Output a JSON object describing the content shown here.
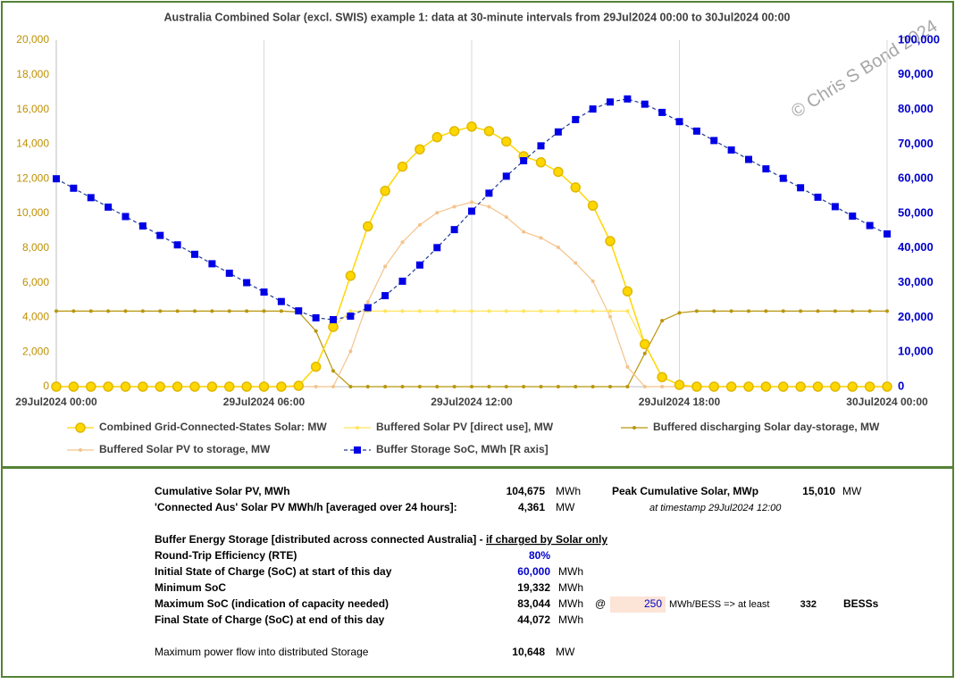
{
  "chart_data": {
    "type": "line",
    "title": "Australia Combined Solar (excl. SWIS) example 1: data at 30-minute intervals from 29Jul2024 00:00 to 30Jul2024 00:00",
    "annotation": "© Chris S Bond 2024",
    "categories": [
      "29Jul2024 00:00",
      null,
      null,
      null,
      null,
      null,
      null,
      null,
      null,
      null,
      null,
      null,
      "29Jul2024 06:00",
      null,
      null,
      null,
      null,
      null,
      null,
      null,
      null,
      null,
      null,
      null,
      "29Jul2024 12:00",
      null,
      null,
      null,
      null,
      null,
      null,
      null,
      null,
      null,
      null,
      null,
      "29Jul2024 18:00",
      null,
      null,
      null,
      null,
      null,
      null,
      null,
      null,
      null,
      null,
      null,
      "30Jul2024 00:00"
    ],
    "ylim": [
      0,
      20000
    ],
    "yticks": [
      0,
      {
        "value": 2000,
        "label": "2,000"
      },
      {
        "value": 4000,
        "label": "4,000"
      },
      {
        "value": 6000,
        "label": "6,000"
      },
      {
        "value": 8000,
        "label": "8,000"
      },
      {
        "value": 10000,
        "label": "10,000"
      },
      {
        "value": 12000,
        "label": "12,000"
      },
      {
        "value": 14000,
        "label": "14,000"
      },
      {
        "value": 16000,
        "label": "16,000"
      },
      {
        "value": 18000,
        "label": "18,000"
      },
      {
        "value": 20000,
        "label": "20,000"
      }
    ],
    "y2lim": [
      0,
      100000
    ],
    "y2ticks": [
      0,
      {
        "value": 10000,
        "label": "10,000"
      },
      {
        "value": 20000,
        "label": "20,000"
      },
      {
        "value": 30000,
        "label": "30,000"
      },
      {
        "value": 40000,
        "label": "40,000"
      },
      {
        "value": 50000,
        "label": "50,000"
      },
      {
        "value": 60000,
        "label": "60,000"
      },
      {
        "value": 70000,
        "label": "70,000"
      },
      {
        "value": 80000,
        "label": "80,000"
      },
      {
        "value": 90000,
        "label": "90,000"
      },
      {
        "value": 100000,
        "label": "100,000"
      }
    ],
    "grid": "x",
    "series": [
      {
        "name": "Combined Grid-Connected-States Solar: MW",
        "color": "#FFD700",
        "marker": "circle",
        "line_style": "solid",
        "values": [
          0,
          0,
          0,
          0,
          0,
          0,
          0,
          0,
          0,
          0,
          0,
          0,
          0,
          0,
          50,
          1150,
          3450,
          6400,
          9250,
          11300,
          12700,
          13700,
          14400,
          14750,
          15010,
          14750,
          14150,
          13300,
          12950,
          12400,
          11500,
          10450,
          8400,
          5500,
          2450,
          550,
          100,
          0,
          0,
          0,
          0,
          0,
          0,
          0,
          0,
          0,
          0,
          0,
          0
        ]
      },
      {
        "name": "Buffered Solar PV [direct use], MW",
        "color": "#FFE45C",
        "marker": "dot",
        "line_style": "solid",
        "values": [
          0,
          0,
          0,
          0,
          0,
          0,
          0,
          0,
          0,
          0,
          0,
          0,
          0,
          0,
          50,
          1150,
          3450,
          4361,
          4361,
          4361,
          4361,
          4361,
          4361,
          4361,
          4361,
          4361,
          4361,
          4361,
          4361,
          4361,
          4361,
          4361,
          4361,
          4361,
          2450,
          550,
          100,
          0,
          0,
          0,
          0,
          0,
          0,
          0,
          0,
          0,
          0,
          0,
          0
        ]
      },
      {
        "name": "Buffered discharging Solar day-storage, MW",
        "color": "#B8960C",
        "marker": "dot",
        "line_style": "solid",
        "values": [
          4361,
          4361,
          4361,
          4361,
          4361,
          4361,
          4361,
          4361,
          4361,
          4361,
          4361,
          4361,
          4361,
          4361,
          4311,
          3211,
          911,
          0,
          0,
          0,
          0,
          0,
          0,
          0,
          0,
          0,
          0,
          0,
          0,
          0,
          0,
          0,
          0,
          0,
          1911,
          3811,
          4261,
          4361,
          4361,
          4361,
          4361,
          4361,
          4361,
          4361,
          4361,
          4361,
          4361,
          4361,
          4361
        ]
      },
      {
        "name": "Buffered Solar PV to storage, MW",
        "color": "#F4C38A",
        "marker": "dot",
        "line_style": "solid",
        "values": [
          0,
          0,
          0,
          0,
          0,
          0,
          0,
          0,
          0,
          0,
          0,
          0,
          0,
          0,
          0,
          0,
          0,
          2039,
          4889,
          6939,
          8339,
          9339,
          10039,
          10389,
          10648,
          10389,
          9789,
          8939,
          8589,
          8039,
          7139,
          6089,
          4039,
          1139,
          0,
          0,
          0,
          0,
          0,
          0,
          0,
          0,
          0,
          0,
          0,
          0,
          0,
          0,
          0
        ]
      },
      {
        "name": "Buffer Storage SoC, MWh [R axis]",
        "color": "#0000E6",
        "marker": "square",
        "line_style": "dashed",
        "axis": "y2",
        "values": [
          60000,
          57274,
          54549,
          51823,
          49097,
          46372,
          43646,
          40920,
          38195,
          35469,
          32743,
          30018,
          27292,
          24566,
          21872,
          19865,
          19332,
          20352,
          22796,
          26266,
          30436,
          35106,
          40126,
          45321,
          50646,
          55841,
          60736,
          65206,
          69501,
          73521,
          77091,
          80136,
          82156,
          83044,
          81532,
          79150,
          76487,
          73761,
          71035,
          68309,
          65583,
          62857,
          60131,
          57405,
          54679,
          51953,
          49227,
          46501,
          44072
        ]
      }
    ]
  },
  "summary": {
    "cumulative": {
      "label": "Cumulative Solar PV, MWh",
      "value": "104,675",
      "unit": "MWh"
    },
    "peak": {
      "label": "Peak Cumulative Solar, MWp",
      "value": "15,010",
      "unit": "MW",
      "note": "at timestamp 29Jul2024 12:00"
    },
    "connected": {
      "label": "'Connected Aus' Solar PV MWh/h [averaged over 24 hours]:",
      "value": "4,361",
      "unit": "MW"
    },
    "heading": {
      "text": "Buffer Energy Storage [distributed across connected Australia] - ",
      "emphasis": "if charged by Solar only"
    },
    "rte": {
      "label": "Round-Trip Efficiency (RTE)",
      "value": "80%"
    },
    "initial": {
      "label": "Initial State of Charge (SoC) at start of this day",
      "value": "60,000",
      "unit": "MWh"
    },
    "minimum": {
      "label": "Minimum SoC",
      "value": "19,332",
      "unit": "MWh"
    },
    "maximum": {
      "label": "Maximum SoC (indication of capacity needed)",
      "value": "83,044",
      "unit": "MWh",
      "at": "@",
      "bess_size": "250",
      "bess_unit": "MWh/BESS => at least",
      "bess_count": "332",
      "bess_label": "BESSs"
    },
    "final": {
      "label": "Final State of Charge (SoC) at end of this day",
      "value": "44,072",
      "unit": "MWh"
    },
    "max_flow": {
      "label": "Maximum power flow into distributed Storage",
      "value": "10,648",
      "unit": "MW"
    }
  }
}
